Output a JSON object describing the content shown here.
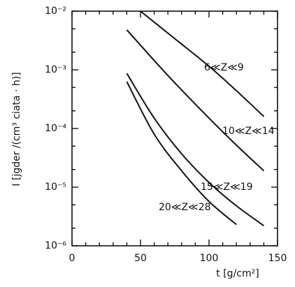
{
  "chart_data": {
    "type": "line",
    "xlabel": "t [g/cm²]",
    "ylabel": "I [jgder /(cm³ ciata · h)]",
    "yscale": "log",
    "xlim": [
      0,
      150
    ],
    "xticks": [
      0,
      50,
      100,
      150
    ],
    "ylim": [
      1e-06,
      0.01
    ],
    "yticks": [
      {
        "value": 0.01,
        "label": "10⁻²"
      },
      {
        "value": 0.001,
        "label": "10⁻³"
      },
      {
        "value": 0.0001,
        "label": "10⁻⁴"
      },
      {
        "value": 1e-05,
        "label": "10⁻⁵"
      },
      {
        "value": 1e-06,
        "label": "10⁻⁶"
      }
    ],
    "series": [
      {
        "name": "6≪Z≪9",
        "color": "#111111",
        "x": [
          50,
          75,
          100,
          120,
          140
        ],
        "values": [
          0.01,
          0.0034,
          0.00115,
          0.00044,
          0.00016
        ]
      },
      {
        "name": "10≪Z≪14",
        "color": "#111111",
        "x": [
          40,
          70,
          100,
          120,
          140
        ],
        "values": [
          0.0048,
          0.0008,
          0.00015,
          5.2e-05,
          1.9e-05
        ]
      },
      {
        "name": "15≪Z≪19",
        "color": "#111111",
        "x": [
          40,
          60,
          80,
          100,
          120,
          140
        ],
        "values": [
          0.00087,
          0.00015,
          3.7e-05,
          1.2e-05,
          4.8e-06,
          2.2e-06
        ]
      },
      {
        "name": "20≪Z≪28",
        "color": "#111111",
        "x": [
          40,
          60,
          80,
          100,
          120
        ],
        "values": [
          0.00063,
          8e-05,
          1.9e-05,
          5.7e-06,
          2.3e-06
        ]
      }
    ]
  }
}
